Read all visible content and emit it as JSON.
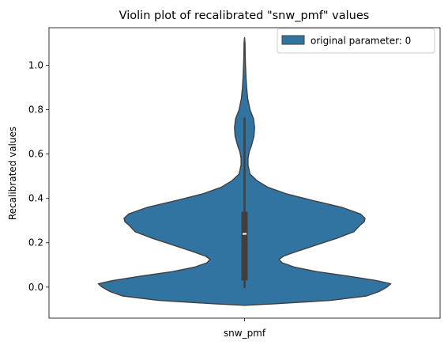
{
  "chart_data": {
    "type": "violin",
    "title": "Violin plot of recalibrated \"snw_pmf\" values",
    "xlabel": "",
    "ylabel": "Recalibrated values",
    "categories": [
      "snw_pmf"
    ],
    "ylim": [
      -0.14,
      1.17
    ],
    "yticks": [
      "0.0",
      "0.2",
      "0.4",
      "0.6",
      "0.8",
      "1.0"
    ],
    "legend": {
      "placement": "top-right",
      "entries": [
        "original parameter: 0"
      ]
    },
    "color": "#3274a1",
    "edge_color": "#3f3f3f",
    "grid": false,
    "series": [
      {
        "category": "snw_pmf",
        "density_profile": [
          [
            -0.082,
            0.0
          ],
          [
            -0.075,
            0.2
          ],
          [
            -0.06,
            0.55
          ],
          [
            -0.04,
            0.78
          ],
          [
            -0.02,
            0.86
          ],
          [
            0.0,
            0.91
          ],
          [
            0.015,
            0.935
          ],
          [
            0.03,
            0.84
          ],
          [
            0.05,
            0.66
          ],
          [
            0.07,
            0.46
          ],
          [
            0.09,
            0.32
          ],
          [
            0.11,
            0.24
          ],
          [
            0.125,
            0.22
          ],
          [
            0.14,
            0.25
          ],
          [
            0.16,
            0.33
          ],
          [
            0.19,
            0.46
          ],
          [
            0.22,
            0.59
          ],
          [
            0.25,
            0.7
          ],
          [
            0.28,
            0.74
          ],
          [
            0.295,
            0.765
          ],
          [
            0.31,
            0.77
          ],
          [
            0.33,
            0.74
          ],
          [
            0.36,
            0.62
          ],
          [
            0.39,
            0.44
          ],
          [
            0.42,
            0.27
          ],
          [
            0.45,
            0.15
          ],
          [
            0.48,
            0.08
          ],
          [
            0.51,
            0.035
          ],
          [
            0.55,
            0.022
          ],
          [
            0.58,
            0.022
          ],
          [
            0.61,
            0.03
          ],
          [
            0.64,
            0.045
          ],
          [
            0.68,
            0.06
          ],
          [
            0.72,
            0.064
          ],
          [
            0.76,
            0.057
          ],
          [
            0.8,
            0.035
          ],
          [
            0.85,
            0.02
          ],
          [
            0.9,
            0.013
          ],
          [
            0.95,
            0.009
          ],
          [
            1.0,
            0.006
          ],
          [
            1.05,
            0.004
          ],
          [
            1.1,
            0.003
          ],
          [
            1.125,
            0.0
          ]
        ],
        "quartiles": {
          "q1": 0.03,
          "median": 0.24,
          "q3": 0.34
        },
        "whiskers": {
          "low": -0.005,
          "high": 0.765
        }
      }
    ]
  }
}
